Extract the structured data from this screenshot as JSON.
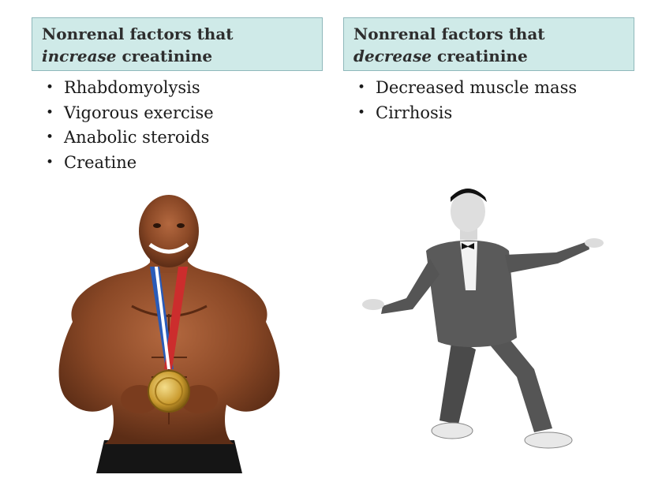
{
  "left_panel": {
    "header_line1": "Nonrenal factors that",
    "header_emphasis": "increase",
    "header_rest": " creatinine",
    "items": [
      "Rhabdomyolysis",
      "Vigorous exercise",
      "Anabolic steroids",
      "Creatine"
    ]
  },
  "right_panel": {
    "header_line1": "Nonrenal factors that",
    "header_emphasis": "decrease",
    "header_rest": " creatinine",
    "items": [
      "Decreased muscle mass",
      "Cirrhosis"
    ]
  },
  "colors": {
    "header_background": "#cfeae8",
    "header_border": "#8fb8bb",
    "header_text": "#2e2e2e"
  }
}
